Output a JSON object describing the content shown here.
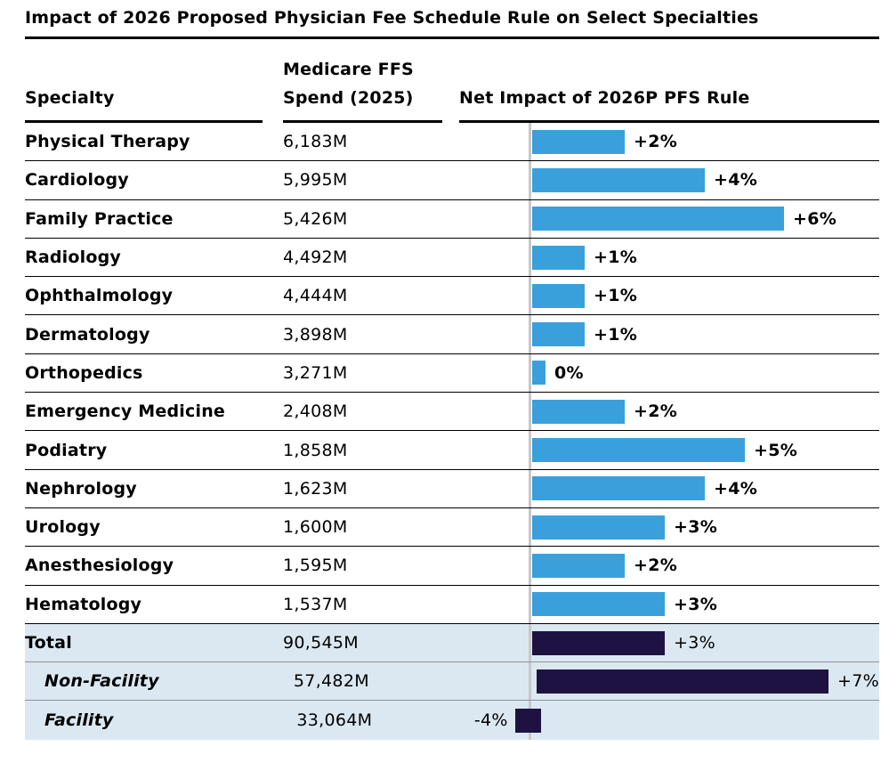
{
  "title": "Impact of 2026 Proposed Physician Fee Schedule Rule on Select Specialties",
  "columns": {
    "specialty": "Specialty",
    "spend_line1": "Medicare FFS",
    "spend_line2": "Spend (2025)",
    "impact": "Net Impact of 2026P PFS Rule"
  },
  "colors": {
    "bar_blue": "#3aa0dc",
    "bar_navy": "#1e1243",
    "summary_bg": "#dbe8f2",
    "axis_line": "#c8c8c8",
    "rule_black": "#000000",
    "summary_rule_gray": "#919191"
  },
  "chart_data": {
    "type": "bar",
    "orientation": "horizontal",
    "title": "Impact of 2026 Proposed Physician Fee Schedule Rule on Select Specialties",
    "categories_label": "Specialty",
    "spend_column_label": "Medicare FFS Spend (2025)",
    "value_axis_label": "Net Impact of 2026P PFS Rule",
    "value_unit": "percent",
    "value_range_shown": [
      -4,
      7
    ],
    "zero_axis_line": true,
    "rows": [
      {
        "specialty": "Physical Therapy",
        "spend": "6,183M",
        "impact_pct": 2,
        "impact_label": "+2%",
        "section": "specialty"
      },
      {
        "specialty": "Cardiology",
        "spend": "5,995M",
        "impact_pct": 4,
        "impact_label": "+4%",
        "section": "specialty"
      },
      {
        "specialty": "Family Practice",
        "spend": "5,426M",
        "impact_pct": 6,
        "impact_label": "+6%",
        "section": "specialty"
      },
      {
        "specialty": "Radiology",
        "spend": "4,492M",
        "impact_pct": 1,
        "impact_label": "+1%",
        "section": "specialty"
      },
      {
        "specialty": "Ophthalmology",
        "spend": "4,444M",
        "impact_pct": 1,
        "impact_label": "+1%",
        "section": "specialty"
      },
      {
        "specialty": "Dermatology",
        "spend": "3,898M",
        "impact_pct": 1,
        "impact_label": "+1%",
        "section": "specialty"
      },
      {
        "specialty": "Orthopedics",
        "spend": "3,271M",
        "impact_pct": 0,
        "impact_label": "0%",
        "section": "specialty"
      },
      {
        "specialty": "Emergency Medicine",
        "spend": "2,408M",
        "impact_pct": 2,
        "impact_label": "+2%",
        "section": "specialty"
      },
      {
        "specialty": "Podiatry",
        "spend": "1,858M",
        "impact_pct": 5,
        "impact_label": "+5%",
        "section": "specialty"
      },
      {
        "specialty": "Nephrology",
        "spend": "1,623M",
        "impact_pct": 4,
        "impact_label": "+4%",
        "section": "specialty"
      },
      {
        "specialty": "Urology",
        "spend": "1,600M",
        "impact_pct": 3,
        "impact_label": "+3%",
        "section": "specialty"
      },
      {
        "specialty": "Anesthesiology",
        "spend": "1,595M",
        "impact_pct": 2,
        "impact_label": "+2%",
        "section": "specialty"
      },
      {
        "specialty": "Hematology",
        "spend": "1,537M",
        "impact_pct": 3,
        "impact_label": "+3%",
        "section": "specialty"
      },
      {
        "specialty": "Total",
        "spend": "90,545M",
        "impact_pct": 3,
        "impact_label": "+3%",
        "section": "summary",
        "indent": false
      },
      {
        "specialty": "Non-Facility",
        "spend": "57,482M",
        "impact_pct": 7,
        "impact_label": "+7%",
        "section": "summary",
        "indent": true
      },
      {
        "specialty": "Facility",
        "spend": "33,064M",
        "impact_pct": -4,
        "impact_label": "-4%",
        "section": "summary",
        "indent": true,
        "truncated": true
      }
    ]
  }
}
